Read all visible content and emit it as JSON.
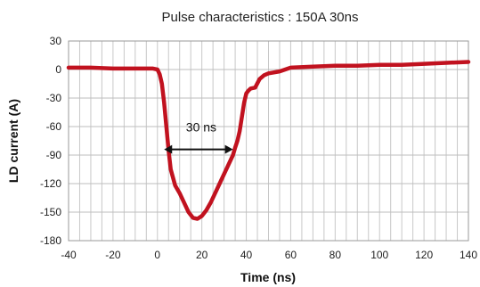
{
  "chart_data": {
    "type": "line",
    "title": "Pulse characteristics : 150A 30ns",
    "xlabel": "Time (ns)",
    "ylabel": "LD current (A)",
    "xlim": [
      -40,
      140
    ],
    "ylim": [
      -180,
      30
    ],
    "xticks": [
      -40,
      -20,
      0,
      20,
      40,
      60,
      80,
      100,
      120,
      140
    ],
    "yticks": [
      30,
      0,
      -30,
      -60,
      -90,
      -120,
      -150,
      -180
    ],
    "grid": {
      "vertical": true,
      "horizontal": true,
      "vertical_step": 4
    },
    "series": [
      {
        "color": "#c1121f",
        "x": [
          -40,
          -30,
          -20,
          -10,
          -2,
          0,
          1,
          2,
          3,
          4,
          5,
          6,
          8,
          10,
          12,
          14,
          16,
          18,
          20,
          22,
          24,
          26,
          28,
          30,
          32,
          34,
          35,
          36,
          37,
          38,
          39,
          40,
          41,
          42,
          44,
          46,
          48,
          50,
          55,
          60,
          70,
          80,
          90,
          100,
          110,
          120,
          130,
          140
        ],
        "y": [
          2,
          2,
          1,
          1,
          1,
          0,
          -5,
          -15,
          -35,
          -60,
          -85,
          -105,
          -122,
          -130,
          -140,
          -150,
          -156,
          -157,
          -154,
          -148,
          -140,
          -130,
          -120,
          -110,
          -100,
          -90,
          -82,
          -75,
          -65,
          -50,
          -35,
          -25,
          -22,
          -20,
          -19,
          -10,
          -6,
          -4,
          -2,
          2,
          3,
          4,
          4,
          5,
          5,
          6,
          7,
          8
        ]
      }
    ],
    "annotations": [
      {
        "text": "30 ns",
        "x_start": 3,
        "x_end": 34,
        "y": -84
      }
    ]
  }
}
